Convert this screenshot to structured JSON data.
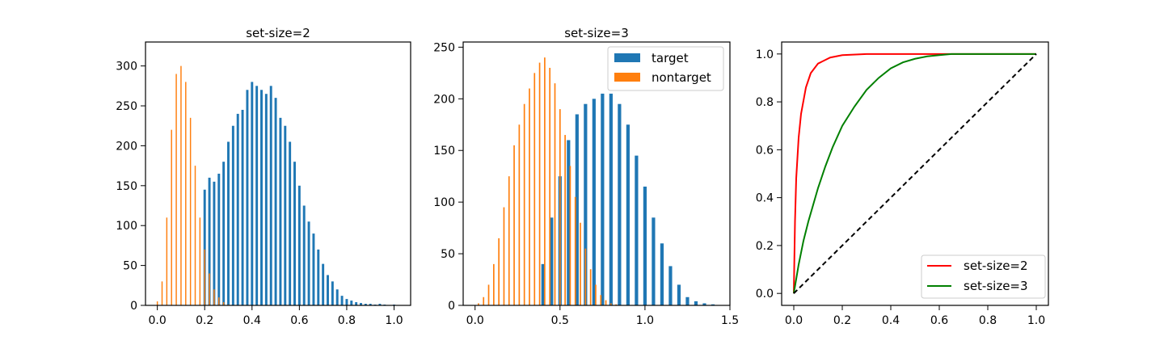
{
  "colors": {
    "target": "#1f77b4",
    "nontarget": "#ff7f0e",
    "roc_set2": "#ff0000",
    "roc_set3": "#008000",
    "chance": "#000000"
  },
  "chart_data": [
    {
      "type": "histogram",
      "title": "set-size=2",
      "xlim": [
        -0.05,
        1.07
      ],
      "ylim": [
        0,
        330
      ],
      "xticks": [
        0.0,
        0.2,
        0.4,
        0.6,
        0.8,
        1.0
      ],
      "xtick_labels": [
        "0.0",
        "0.2",
        "0.4",
        "0.6",
        "0.8",
        "1.0"
      ],
      "yticks": [
        0,
        50,
        100,
        150,
        200,
        250,
        300
      ],
      "ytick_labels": [
        "0",
        "50",
        "100",
        "150",
        "200",
        "250",
        "300"
      ],
      "series": [
        {
          "key": "target",
          "bin_width": 0.01,
          "x": [
            0.2,
            0.22,
            0.24,
            0.26,
            0.28,
            0.3,
            0.32,
            0.34,
            0.36,
            0.38,
            0.4,
            0.42,
            0.44,
            0.46,
            0.48,
            0.5,
            0.52,
            0.54,
            0.56,
            0.58,
            0.6,
            0.62,
            0.64,
            0.66,
            0.68,
            0.7,
            0.72,
            0.74,
            0.76,
            0.78,
            0.8,
            0.82,
            0.84,
            0.86,
            0.88,
            0.9,
            0.92,
            0.94,
            0.96,
            0.98,
            1.0
          ],
          "values": [
            145,
            160,
            155,
            165,
            180,
            205,
            225,
            240,
            245,
            270,
            280,
            275,
            270,
            265,
            275,
            260,
            235,
            225,
            205,
            180,
            150,
            125,
            105,
            90,
            70,
            52,
            38,
            30,
            20,
            12,
            8,
            6,
            4,
            3,
            2,
            2,
            1,
            2,
            1,
            0,
            1
          ]
        },
        {
          "key": "nontarget",
          "bin_width": 0.005,
          "x": [
            0.0,
            0.02,
            0.04,
            0.06,
            0.08,
            0.1,
            0.12,
            0.14,
            0.16,
            0.18,
            0.2,
            0.22,
            0.24,
            0.26,
            0.28,
            0.3
          ],
          "values": [
            5,
            30,
            110,
            220,
            290,
            300,
            280,
            235,
            175,
            110,
            70,
            40,
            20,
            10,
            4,
            1
          ]
        }
      ]
    },
    {
      "type": "histogram",
      "title": "set-size=3",
      "xlim": [
        -0.07,
        1.5
      ],
      "ylim": [
        0,
        255
      ],
      "xticks": [
        0.0,
        0.5,
        1.0,
        1.5
      ],
      "xtick_labels": [
        "0.0",
        "0.5",
        "1.0",
        "1.5"
      ],
      "yticks": [
        0,
        50,
        100,
        150,
        200,
        250
      ],
      "ytick_labels": [
        "0",
        "50",
        "100",
        "150",
        "200",
        "250"
      ],
      "legend": {
        "position": "upper right",
        "entries": [
          {
            "key": "target",
            "label": "target"
          },
          {
            "key": "nontarget",
            "label": "nontarget"
          }
        ]
      },
      "series": [
        {
          "key": "target",
          "bin_width": 0.02,
          "x": [
            0.4,
            0.45,
            0.5,
            0.55,
            0.6,
            0.65,
            0.7,
            0.75,
            0.8,
            0.85,
            0.9,
            0.95,
            1.0,
            1.05,
            1.1,
            1.15,
            1.2,
            1.25,
            1.3,
            1.35,
            1.4
          ],
          "values": [
            40,
            85,
            125,
            160,
            185,
            195,
            200,
            205,
            205,
            195,
            175,
            145,
            115,
            85,
            60,
            38,
            20,
            8,
            4,
            2,
            1
          ]
        },
        {
          "key": "nontarget",
          "bin_width": 0.008,
          "x": [
            0.02,
            0.05,
            0.08,
            0.11,
            0.14,
            0.17,
            0.2,
            0.23,
            0.26,
            0.29,
            0.32,
            0.35,
            0.38,
            0.41,
            0.44,
            0.47,
            0.5,
            0.53,
            0.56,
            0.59,
            0.62,
            0.65,
            0.68,
            0.71,
            0.74,
            0.77,
            0.8,
            0.83
          ],
          "values": [
            2,
            8,
            20,
            40,
            65,
            95,
            125,
            155,
            175,
            195,
            210,
            225,
            235,
            240,
            230,
            215,
            190,
            165,
            135,
            105,
            80,
            55,
            35,
            20,
            10,
            5,
            2,
            1
          ]
        }
      ]
    },
    {
      "type": "line",
      "title": "",
      "xlim": [
        -0.05,
        1.05
      ],
      "ylim": [
        -0.05,
        1.05
      ],
      "xticks": [
        0.0,
        0.2,
        0.4,
        0.6,
        0.8,
        1.0
      ],
      "xtick_labels": [
        "0.0",
        "0.2",
        "0.4",
        "0.6",
        "0.8",
        "1.0"
      ],
      "yticks": [
        0.0,
        0.2,
        0.4,
        0.6,
        0.8,
        1.0
      ],
      "ytick_labels": [
        "0.0",
        "0.2",
        "0.4",
        "0.6",
        "0.8",
        "1.0"
      ],
      "legend": {
        "position": "lower right",
        "entries": [
          {
            "key": "roc_set2",
            "label": "set-size=2"
          },
          {
            "key": "roc_set3",
            "label": "set-size=3"
          }
        ]
      },
      "series": [
        {
          "key": "roc_set2",
          "name": "set-size=2",
          "x": [
            0.0,
            0.005,
            0.01,
            0.02,
            0.03,
            0.05,
            0.07,
            0.1,
            0.15,
            0.2,
            0.3,
            0.5,
            0.7,
            1.0
          ],
          "y": [
            0.0,
            0.3,
            0.48,
            0.65,
            0.75,
            0.86,
            0.92,
            0.96,
            0.985,
            0.995,
            1.0,
            1.0,
            1.0,
            1.0
          ]
        },
        {
          "key": "roc_set3",
          "name": "set-size=3",
          "x": [
            0.0,
            0.02,
            0.04,
            0.06,
            0.08,
            0.1,
            0.13,
            0.16,
            0.2,
            0.25,
            0.3,
            0.35,
            0.4,
            0.45,
            0.5,
            0.55,
            0.6,
            0.65,
            0.7,
            0.8,
            0.9,
            1.0
          ],
          "y": [
            0.0,
            0.12,
            0.22,
            0.3,
            0.37,
            0.44,
            0.53,
            0.61,
            0.7,
            0.78,
            0.85,
            0.9,
            0.94,
            0.965,
            0.98,
            0.99,
            0.995,
            1.0,
            1.0,
            1.0,
            1.0,
            1.0
          ]
        },
        {
          "key": "chance",
          "x": [
            0.0,
            1.0
          ],
          "y": [
            0.0,
            1.0
          ],
          "dashed": true
        }
      ]
    }
  ]
}
